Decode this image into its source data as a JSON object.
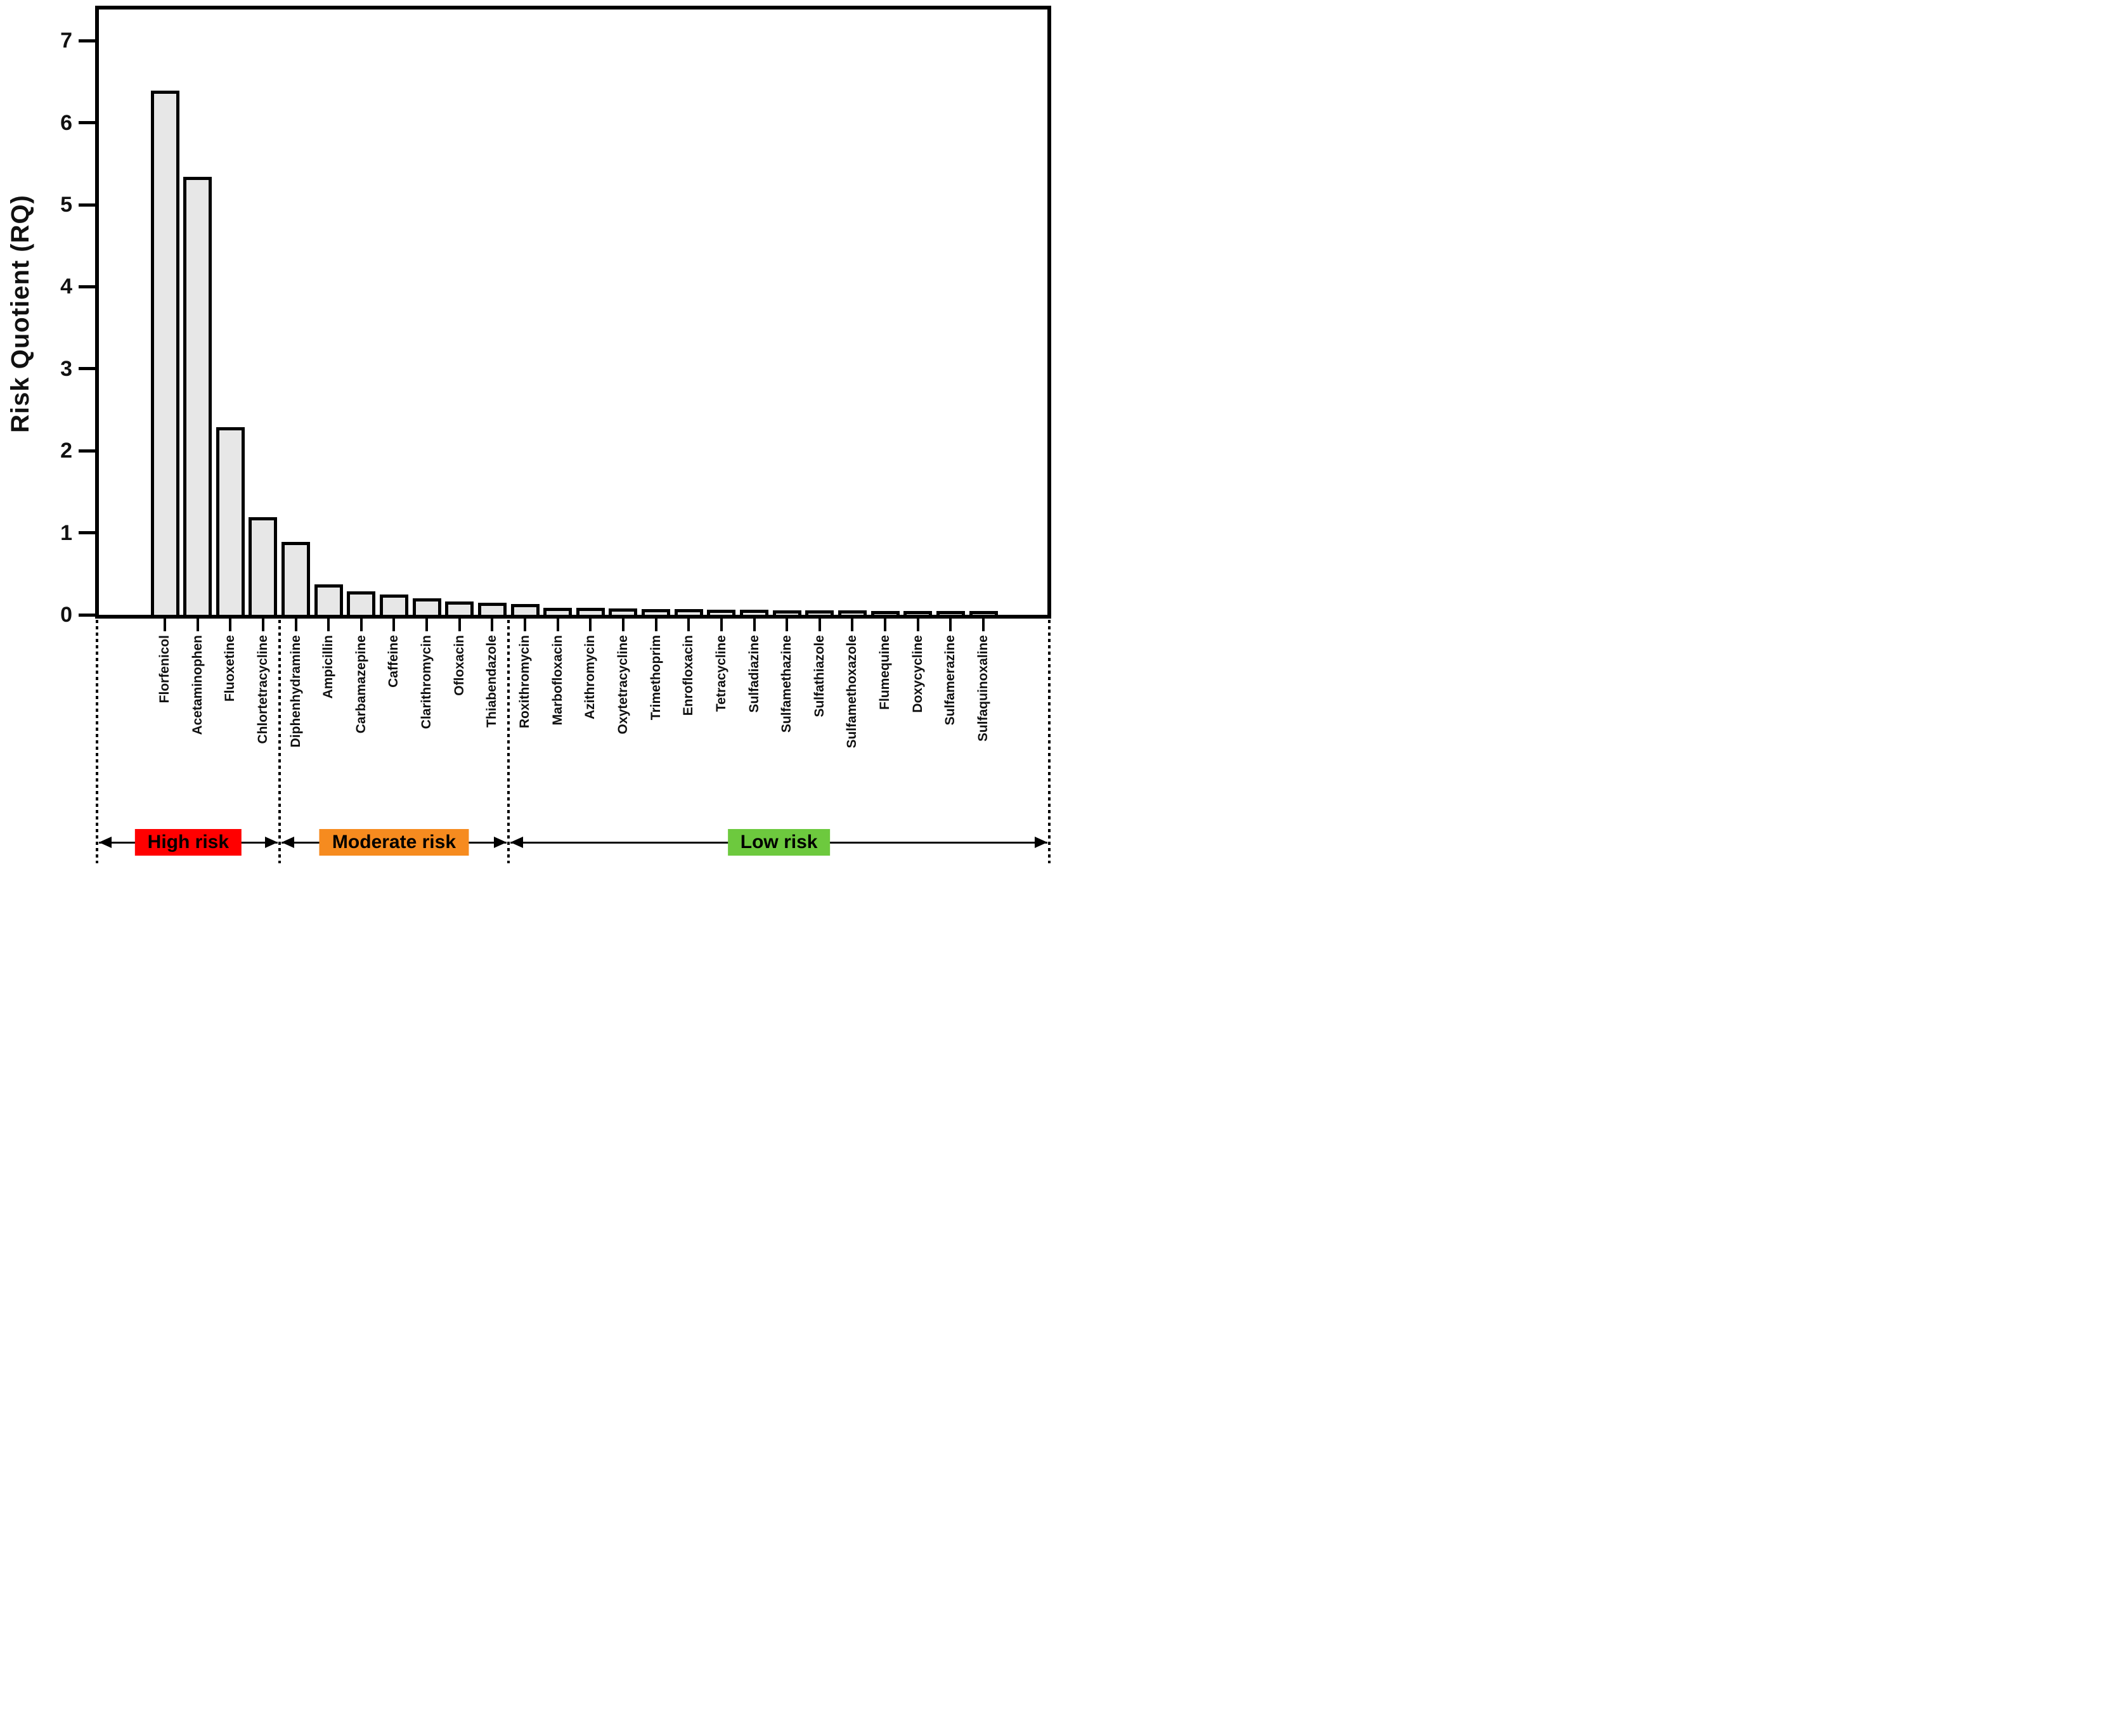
{
  "chart_data": {
    "type": "bar",
    "title": "",
    "ylabel": "Risk Quotient (RQ)",
    "xlabel": "",
    "ylim": [
      0,
      7.4
    ],
    "yticks": [
      0,
      1,
      2,
      3,
      4,
      5,
      6,
      7
    ],
    "grid": false,
    "legend": "none",
    "bar_fill": "#E7E7E7",
    "bar_border": "#000000",
    "categories": [
      "Florfenicol",
      "Acetaminophen",
      "Fluoxetine",
      "Chlortetracycline",
      "Diphenhydramine",
      "Ampicillin",
      "Carbamazepine",
      "Caffeine",
      "Clarithromycin",
      "Ofloxacin",
      "Thiabendazole",
      "Roxithromycin",
      "Marbofloxacin",
      "Azithromycin",
      "Oxytetracycline",
      "Trimethoprim",
      "Enrofloxacin",
      "Tetracycline",
      "Sulfadiazine",
      "Sulfamethazine",
      "Sulfathiazole",
      "Sulfamethoxazole",
      "Flumequine",
      "Doxycycline",
      "Sulfamerazine",
      "Sulfaquinoxaline"
    ],
    "values": [
      6.35,
      5.3,
      2.25,
      1.15,
      0.85,
      0.33,
      0.25,
      0.21,
      0.16,
      0.12,
      0.11,
      0.09,
      0.05,
      0.045,
      0.04,
      0.03,
      0.028,
      0.025,
      0.02,
      0.018,
      0.015,
      0.012,
      0.01,
      0.01,
      0.008,
      0.007
    ],
    "risk_zones": [
      {
        "label": "High risk",
        "color": "#FF0000",
        "from_index": 0,
        "to_index": 3
      },
      {
        "label": "Moderate risk",
        "color": "#F68B1F",
        "from_index": 4,
        "to_index": 10
      },
      {
        "label": "Low risk",
        "color": "#6DC93E",
        "from_index": 11,
        "to_index": 25
      }
    ]
  }
}
